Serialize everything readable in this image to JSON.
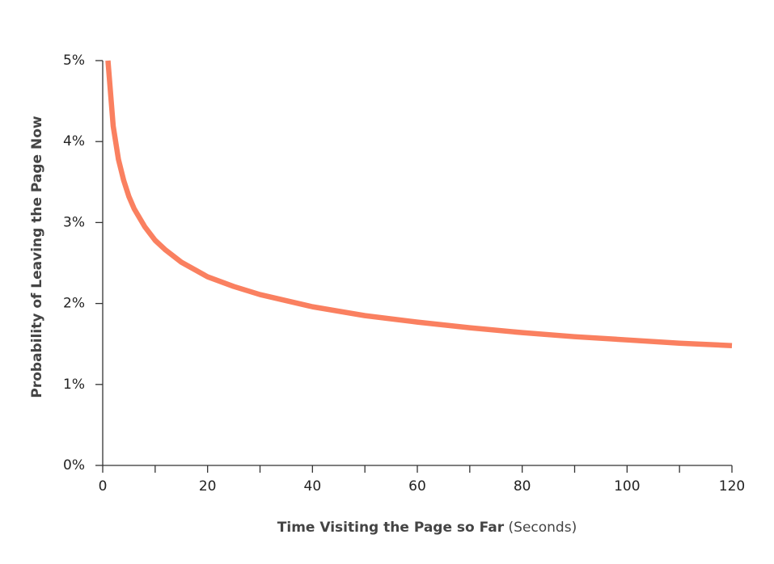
{
  "chart_data": {
    "type": "line",
    "x_label": "Time Visiting the Page so Far",
    "x_label_unit": "(Seconds)",
    "y_label": "Probability of Leaving the Page Now",
    "x": [
      1,
      2,
      3,
      4,
      5,
      6,
      8,
      10,
      12,
      15,
      20,
      25,
      30,
      40,
      50,
      60,
      70,
      80,
      90,
      100,
      110,
      120
    ],
    "values": [
      5.0,
      4.19,
      3.78,
      3.52,
      3.32,
      3.17,
      2.95,
      2.78,
      2.66,
      2.51,
      2.33,
      2.21,
      2.11,
      1.96,
      1.85,
      1.77,
      1.7,
      1.64,
      1.59,
      1.55,
      1.51,
      1.48
    ],
    "color": "#fa8060",
    "xlim": [
      0,
      120
    ],
    "xticks": [
      0,
      20,
      40,
      60,
      80,
      100,
      120
    ],
    "x_minor_ticks": [
      10,
      30,
      50,
      70,
      90,
      110
    ],
    "ylim": [
      0,
      5
    ],
    "yticks": [
      {
        "value": 0,
        "label": "0%"
      },
      {
        "value": 1,
        "label": "1%"
      },
      {
        "value": 2,
        "label": "2%"
      },
      {
        "value": 3,
        "label": "3%"
      },
      {
        "value": 4,
        "label": "4%"
      },
      {
        "value": 5,
        "label": "5%"
      }
    ],
    "grid": false
  }
}
